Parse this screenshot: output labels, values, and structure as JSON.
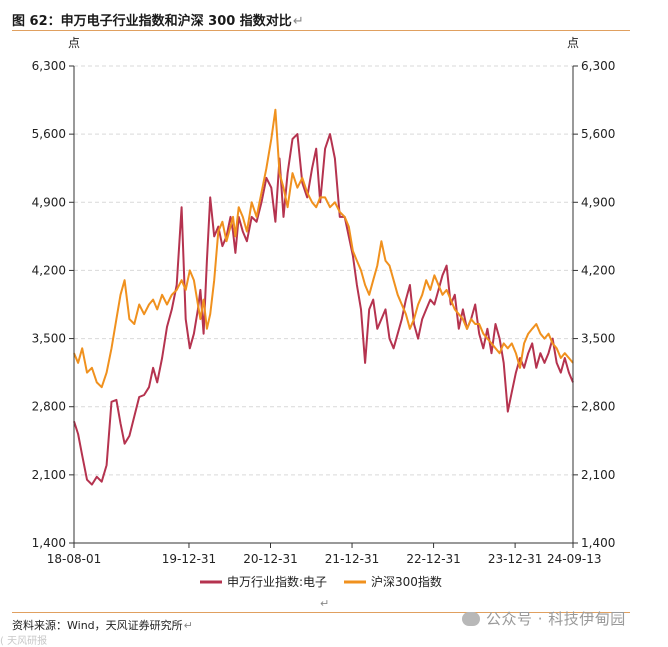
{
  "title": "图 62：申万电子行业指数和沪深 300 指数对比",
  "title_mark": "↵",
  "source": "资料来源：Wind，天风证券研究所",
  "source_mark": "↵",
  "para_mark": "↵",
  "watermark": "公众号 · 科技伊甸园",
  "corner_text": "( 天风研报",
  "colors": {
    "series1": "#b5334f",
    "series2": "#f0911e",
    "rule": "#e0a060"
  },
  "chart_data": {
    "type": "line",
    "title": "图 62：申万电子行业指数和沪深 300 指数对比",
    "ylabel_left": "点",
    "ylabel_right": "点",
    "ylim": [
      1400,
      6300
    ],
    "yticks": [
      1400,
      2100,
      2800,
      3500,
      4200,
      4900,
      5600,
      6300
    ],
    "ytick_labels": [
      "1,400",
      "2,100",
      "2,800",
      "3,500",
      "4,200",
      "4,900",
      "5,600",
      "6,300"
    ],
    "x_range": [
      2018.58,
      2024.7
    ],
    "xticks": [
      2018.58,
      2019.99,
      2020.99,
      2021.99,
      2022.99,
      2023.99,
      2024.7
    ],
    "xtick_labels": [
      "18-08-01",
      "19-12-31",
      "20-12-31",
      "21-12-31",
      "22-12-31",
      "23-12-31",
      "24-09-13"
    ],
    "series": [
      {
        "name": "申万行业指数:电子",
        "x": [
          2018.58,
          2018.63,
          2018.68,
          2018.74,
          2018.8,
          2018.86,
          2018.92,
          2018.98,
          2019.04,
          2019.1,
          2019.15,
          2019.2,
          2019.26,
          2019.32,
          2019.38,
          2019.44,
          2019.5,
          2019.55,
          2019.6,
          2019.66,
          2019.72,
          2019.78,
          2019.84,
          2019.9,
          2019.95,
          2020.0,
          2020.05,
          2020.1,
          2020.13,
          2020.17,
          2020.21,
          2020.25,
          2020.3,
          2020.35,
          2020.4,
          2020.45,
          2020.5,
          2020.53,
          2020.56,
          2020.6,
          2020.65,
          2020.7,
          2020.76,
          2020.82,
          2020.88,
          2020.94,
          2021.0,
          2021.05,
          2021.1,
          2021.15,
          2021.2,
          2021.26,
          2021.32,
          2021.38,
          2021.44,
          2021.5,
          2021.55,
          2021.6,
          2021.66,
          2021.72,
          2021.78,
          2021.84,
          2021.9,
          2021.95,
          2022.0,
          2022.05,
          2022.1,
          2022.15,
          2022.2,
          2022.25,
          2022.3,
          2022.35,
          2022.4,
          2022.45,
          2022.5,
          2022.55,
          2022.6,
          2022.65,
          2022.7,
          2022.75,
          2022.8,
          2022.85,
          2022.9,
          2022.95,
          2023.0,
          2023.05,
          2023.1,
          2023.15,
          2023.2,
          2023.25,
          2023.3,
          2023.35,
          2023.4,
          2023.45,
          2023.5,
          2023.55,
          2023.6,
          2023.65,
          2023.7,
          2023.75,
          2023.8,
          2023.85,
          2023.9,
          2023.95,
          2024.0,
          2024.05,
          2024.1,
          2024.15,
          2024.2,
          2024.25,
          2024.3,
          2024.35,
          2024.4,
          2024.45,
          2024.5,
          2024.55,
          2024.6,
          2024.65,
          2024.7
        ],
        "values": [
          2650,
          2520,
          2300,
          2050,
          2000,
          2080,
          2030,
          2200,
          2850,
          2870,
          2630,
          2420,
          2500,
          2700,
          2900,
          2920,
          3000,
          3200,
          3050,
          3300,
          3620,
          3800,
          4050,
          4850,
          3700,
          3400,
          3550,
          3800,
          4000,
          3550,
          4300,
          4950,
          4550,
          4650,
          4450,
          4550,
          4750,
          4600,
          4380,
          4750,
          4600,
          4500,
          4750,
          4700,
          4900,
          5150,
          5050,
          4700,
          5350,
          4750,
          5200,
          5550,
          5600,
          5100,
          4950,
          5250,
          5450,
          4900,
          5450,
          5600,
          5350,
          4750,
          4750,
          4550,
          4350,
          4050,
          3800,
          3250,
          3800,
          3900,
          3600,
          3700,
          3800,
          3500,
          3400,
          3550,
          3700,
          3900,
          4050,
          3650,
          3500,
          3700,
          3800,
          3900,
          3850,
          4000,
          4150,
          4250,
          3850,
          3950,
          3600,
          3800,
          3600,
          3700,
          3850,
          3550,
          3400,
          3600,
          3350,
          3650,
          3500,
          3250,
          2750,
          2950,
          3150,
          3300,
          3200,
          3350,
          3450,
          3200,
          3350,
          3250,
          3350,
          3500,
          3250,
          3150,
          3300,
          3150,
          3050
        ]
      },
      {
        "name": "沪深300指数",
        "x": [
          2018.58,
          2018.63,
          2018.68,
          2018.74,
          2018.8,
          2018.86,
          2018.92,
          2018.98,
          2019.04,
          2019.1,
          2019.15,
          2019.2,
          2019.26,
          2019.32,
          2019.38,
          2019.44,
          2019.5,
          2019.55,
          2019.6,
          2019.66,
          2019.72,
          2019.78,
          2019.84,
          2019.9,
          2019.95,
          2020.0,
          2020.05,
          2020.1,
          2020.13,
          2020.17,
          2020.21,
          2020.25,
          2020.3,
          2020.35,
          2020.4,
          2020.45,
          2020.5,
          2020.53,
          2020.56,
          2020.6,
          2020.65,
          2020.7,
          2020.76,
          2020.82,
          2020.88,
          2020.94,
          2021.0,
          2021.05,
          2021.1,
          2021.15,
          2021.2,
          2021.26,
          2021.32,
          2021.38,
          2021.44,
          2021.5,
          2021.55,
          2021.6,
          2021.66,
          2021.72,
          2021.78,
          2021.84,
          2021.9,
          2021.95,
          2022.0,
          2022.05,
          2022.1,
          2022.15,
          2022.2,
          2022.25,
          2022.3,
          2022.35,
          2022.4,
          2022.45,
          2022.5,
          2022.55,
          2022.6,
          2022.65,
          2022.7,
          2022.75,
          2022.8,
          2022.85,
          2022.9,
          2022.95,
          2023.0,
          2023.05,
          2023.1,
          2023.15,
          2023.2,
          2023.25,
          2023.3,
          2023.35,
          2023.4,
          2023.45,
          2023.5,
          2023.55,
          2023.6,
          2023.65,
          2023.7,
          2023.75,
          2023.8,
          2023.85,
          2023.9,
          2023.95,
          2024.0,
          2024.05,
          2024.1,
          2024.15,
          2024.2,
          2024.25,
          2024.3,
          2024.35,
          2024.4,
          2024.45,
          2024.5,
          2024.55,
          2024.6,
          2024.65,
          2024.7
        ],
        "values": [
          3350,
          3250,
          3400,
          3150,
          3200,
          3050,
          3000,
          3150,
          3400,
          3700,
          3950,
          4100,
          3700,
          3650,
          3850,
          3750,
          3850,
          3900,
          3800,
          3950,
          3850,
          3950,
          4000,
          4100,
          4000,
          4200,
          4100,
          3850,
          3700,
          3900,
          3600,
          3750,
          4100,
          4600,
          4700,
          4500,
          4650,
          4750,
          4550,
          4850,
          4750,
          4600,
          4900,
          4750,
          5000,
          5250,
          5550,
          5850,
          5200,
          5050,
          4850,
          5200,
          5050,
          5150,
          5000,
          4900,
          4850,
          4950,
          4950,
          4850,
          4900,
          4800,
          4750,
          4650,
          4400,
          4300,
          4200,
          4050,
          3950,
          4100,
          4250,
          4500,
          4300,
          4250,
          4100,
          3950,
          3850,
          3750,
          3600,
          3700,
          3850,
          3950,
          4100,
          4000,
          4150,
          4050,
          3950,
          4000,
          3900,
          3800,
          3750,
          3700,
          3600,
          3700,
          3650,
          3650,
          3550,
          3500,
          3450,
          3400,
          3350,
          3450,
          3400,
          3450,
          3350,
          3200,
          3450,
          3550,
          3600,
          3650,
          3550,
          3500,
          3550,
          3450,
          3400,
          3300,
          3350,
          3300,
          3250
        ]
      }
    ]
  }
}
